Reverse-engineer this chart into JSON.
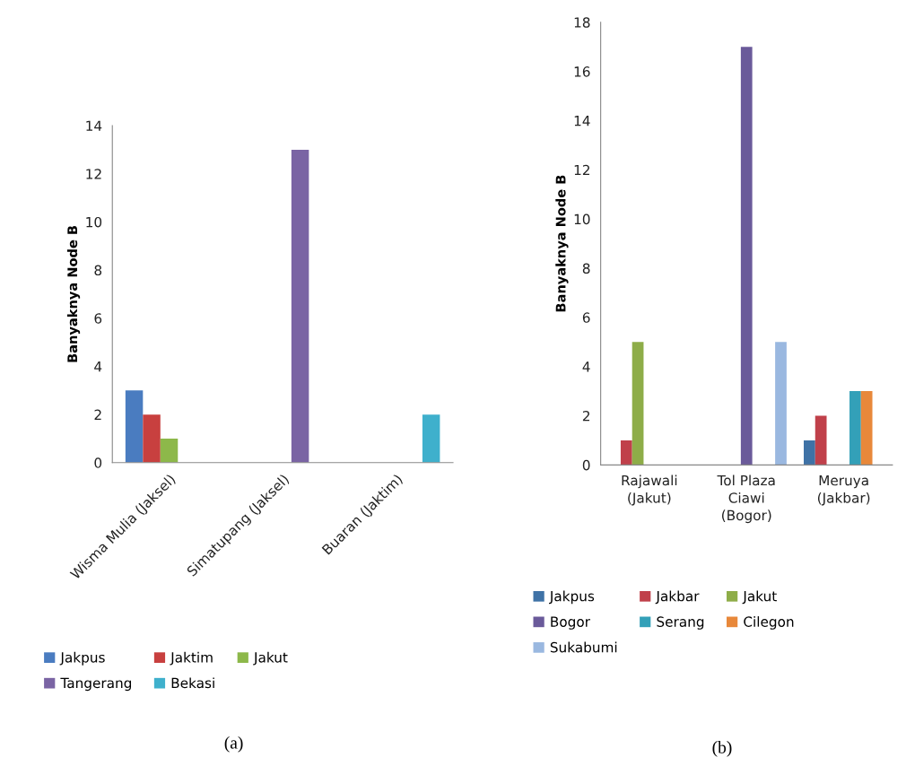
{
  "chart_data": [
    {
      "type": "bar",
      "ylabel": "Banyaknya Node B",
      "categories": [
        "Wisma Mulia (Jaksel)",
        "Simatupang (Jaksel)",
        "Buaran (Jaktim)"
      ],
      "series": [
        {
          "name": "Jakpus",
          "color": "#4a7cc0",
          "values": [
            3,
            null,
            null
          ]
        },
        {
          "name": "Jaktim",
          "color": "#c8403f",
          "values": [
            2,
            null,
            null
          ]
        },
        {
          "name": "Jakut",
          "color": "#8db84a",
          "values": [
            1,
            null,
            null
          ]
        },
        {
          "name": "Tangerang",
          "color": "#7a64a4",
          "values": [
            null,
            13,
            null
          ]
        },
        {
          "name": "Bekasi",
          "color": "#3fb0cc",
          "values": [
            null,
            null,
            2
          ]
        }
      ],
      "ylim": [
        0,
        14
      ],
      "yticks": [
        0,
        2,
        4,
        6,
        8,
        10,
        12,
        14
      ],
      "grid": false,
      "legend": "bottom",
      "annotations": [
        "(a)"
      ]
    },
    {
      "type": "bar",
      "ylabel": "Banyaknya Node B",
      "categories": [
        "Rajawali (Jakut)",
        "Tol Plaza Ciawi (Bogor)",
        "Meruya (Jakbar)"
      ],
      "series": [
        {
          "name": "Jakpus",
          "color": "#3f72a6",
          "values": [
            null,
            null,
            1
          ]
        },
        {
          "name": "Jakbar",
          "color": "#c0404a",
          "values": [
            1,
            null,
            2
          ]
        },
        {
          "name": "Jakut",
          "color": "#8ead48",
          "values": [
            5,
            null,
            null
          ]
        },
        {
          "name": "Bogor",
          "color": "#6a5a9a",
          "values": [
            null,
            17,
            null
          ]
        },
        {
          "name": "Serang",
          "color": "#33a0b8",
          "values": [
            null,
            null,
            3
          ]
        },
        {
          "name": "Cilegon",
          "color": "#e8883a",
          "values": [
            null,
            null,
            3
          ]
        },
        {
          "name": "Sukabumi",
          "color": "#9ab8e0",
          "values": [
            null,
            5,
            null
          ]
        }
      ],
      "ylim": [
        0,
        18
      ],
      "yticks": [
        0,
        2,
        4,
        6,
        8,
        10,
        12,
        14,
        16,
        18
      ],
      "grid": false,
      "legend": "bottom",
      "annotations": [
        "(b)"
      ]
    }
  ]
}
